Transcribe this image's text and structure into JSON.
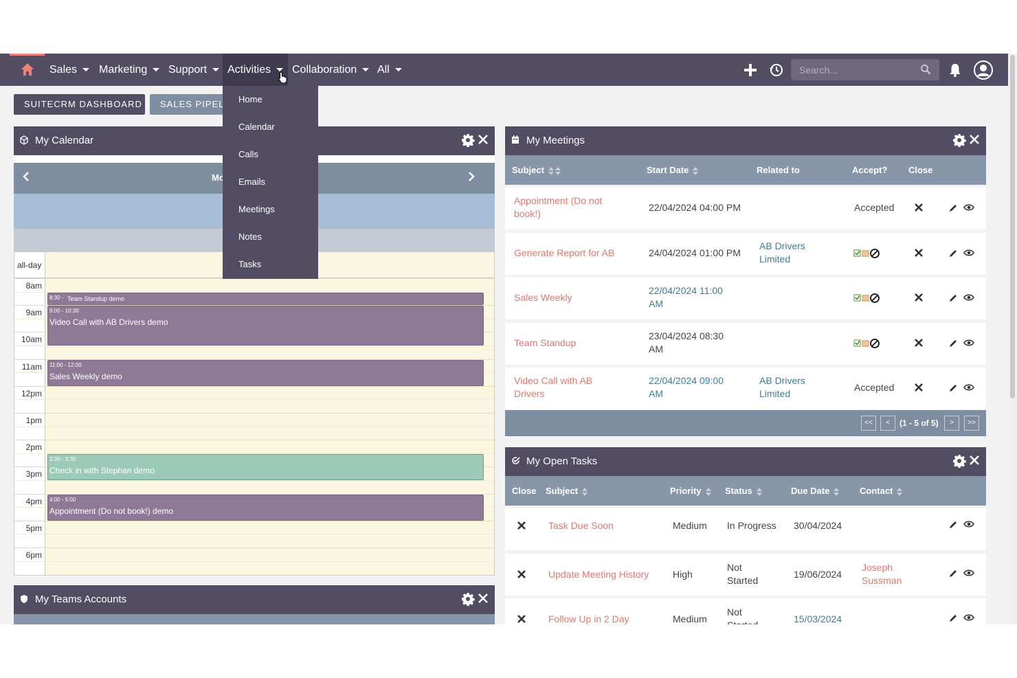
{
  "nav": {
    "items": [
      {
        "label": "Sales"
      },
      {
        "label": "Marketing"
      },
      {
        "label": "Support"
      },
      {
        "label": "Activities"
      },
      {
        "label": "Collaboration"
      },
      {
        "label": "All"
      }
    ],
    "search_placeholder": "Search..."
  },
  "dashboard_tabs": [
    "SUITECRM DASHBOARD",
    "SALES PIPELIN"
  ],
  "activities_menu": [
    "Home",
    "Calendar",
    "Calls",
    "Emails",
    "Meetings",
    "Notes",
    "Tasks"
  ],
  "calendar": {
    "title": "My Calendar",
    "header_partial": "Mo",
    "allday_label": "all-day",
    "hours": [
      "8am",
      "9am",
      "10am",
      "11am",
      "12pm",
      "1pm",
      "2pm",
      "3pm",
      "4pm",
      "5pm",
      "6pm"
    ],
    "events": [
      {
        "time": "8:30 -",
        "title": "Team Standup demo",
        "color": "purple"
      },
      {
        "time": "9:00 - 10:30",
        "title": "Video Call with AB Drivers demo",
        "color": "purple"
      },
      {
        "time": "11:00 - 12:00",
        "title": "Sales Weekly demo",
        "color": "purple"
      },
      {
        "time": "2:30 - 3:30",
        "title": "Check in with Stephan demo",
        "color": "teal"
      },
      {
        "time": "4:00 - 5:00",
        "title": "Appointment (Do not book!) demo",
        "color": "purple"
      }
    ]
  },
  "meetings": {
    "title": "My Meetings",
    "columns": [
      "Subject",
      "Start Date",
      "Related to",
      "Accept?",
      "Close"
    ],
    "rows": [
      {
        "subject": "Appointment (Do not book!)",
        "start": "22/04/2024 04:00 PM",
        "related": "",
        "accept": "Accepted"
      },
      {
        "subject": "Generate Report for AB",
        "start": "24/04/2024 01:00 PM",
        "related": "AB Drivers Limited",
        "accept": ""
      },
      {
        "subject": "Sales Weekly",
        "start": "22/04/2024 11:00 AM",
        "related": "",
        "accept": ""
      },
      {
        "subject": "Team Standup",
        "start": "23/04/2024 08:30 AM",
        "related": "",
        "accept": ""
      },
      {
        "subject": "Video Call with AB Drivers",
        "start": "22/04/2024 09:00 AM",
        "related": "AB Drivers Limited",
        "accept": "Accepted"
      }
    ],
    "pager": {
      "first": "<<",
      "prev": "<",
      "info": "(1 - 5 of 5)",
      "next": ">",
      "last": ">>"
    }
  },
  "tasks": {
    "title": "My Open Tasks",
    "columns": [
      "Close",
      "Subject",
      "Priority",
      "Status",
      "Due Date",
      "Contact"
    ],
    "rows": [
      {
        "subject": "Task Due Soon",
        "priority": "Medium",
        "status": "In Progress",
        "due": "30/04/2024",
        "contact": ""
      },
      {
        "subject": "Update Meeting History",
        "priority": "High",
        "status": "Not Started",
        "due": "19/06/2024",
        "contact": "Joseph Sussman"
      },
      {
        "subject": "Follow Up in 2 Day",
        "priority": "Medium",
        "status": "Not Started",
        "due": "15/03/2024",
        "contact": ""
      }
    ]
  },
  "teams_accounts": {
    "title": "My Teams Accounts"
  },
  "colors": {
    "nav": "#534d64",
    "header_row": "#8796a8",
    "link": "#e0776f",
    "blue_text": "#3e7c99",
    "event_purple": "#8e7a96",
    "event_teal": "#9ccab8"
  }
}
